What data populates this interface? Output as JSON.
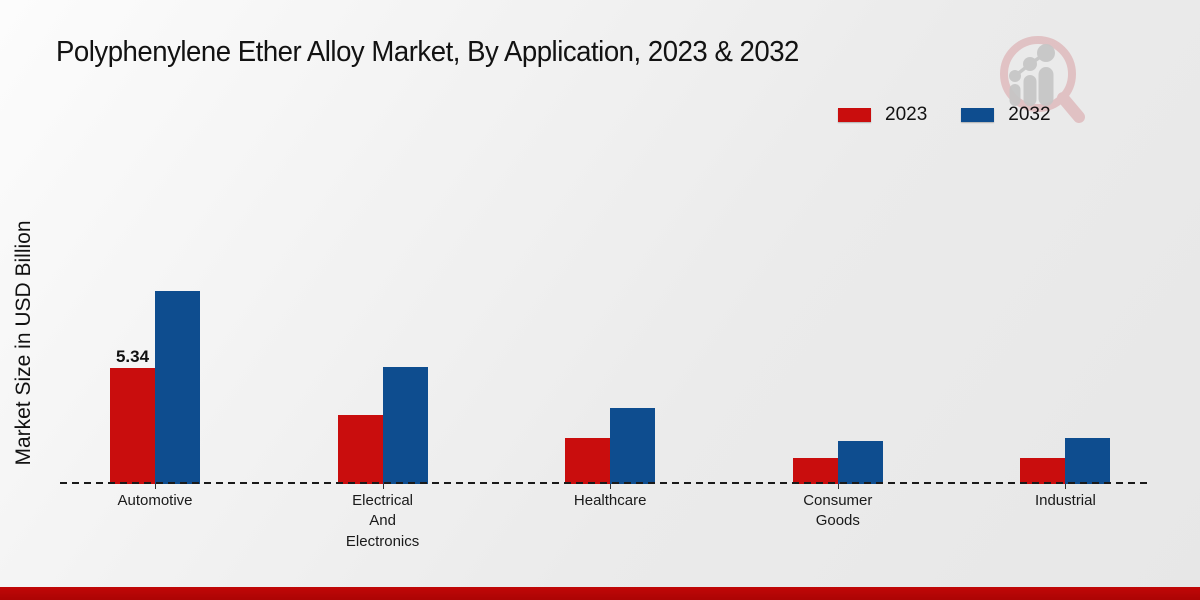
{
  "title": "Polyphenylene Ether Alloy Market, By Application, 2023 & 2032",
  "y_axis_label": "Market Size in USD Billion",
  "legend": {
    "items": [
      {
        "label": "2023",
        "color": "#c90d0d"
      },
      {
        "label": "2032",
        "color": "#0e4d8f"
      }
    ]
  },
  "colors": {
    "series_2023": "#c90d0d",
    "series_2032": "#0e4d8f",
    "baseline_dash": "#1a1a1a",
    "bottom_band": "#b30606"
  },
  "watermark_icon": "magnifier-growth-chart-logo",
  "chart_data": {
    "type": "bar",
    "title": "Polyphenylene Ether Alloy Market, By Application, 2023 & 2032",
    "ylabel": "Market Size in USD Billion",
    "xlabel": "",
    "categories": [
      "Automotive",
      "Electrical\nAnd\nElectronics",
      "Healthcare",
      "Consumer\nGoods",
      "Industrial"
    ],
    "series": [
      {
        "name": "2023",
        "color": "#c90d0d",
        "values": [
          5.34,
          3.2,
          2.1,
          1.2,
          1.2
        ]
      },
      {
        "name": "2032",
        "color": "#0e4d8f",
        "values": [
          8.9,
          5.4,
          3.5,
          2.0,
          2.1
        ]
      }
    ],
    "annotations": [
      {
        "text": "5.34",
        "category_index": 0,
        "series_index": 0
      }
    ],
    "ylim": [
      0,
      10
    ],
    "grid": false,
    "baseline_style": "dashed",
    "legend_position": "top-right"
  }
}
